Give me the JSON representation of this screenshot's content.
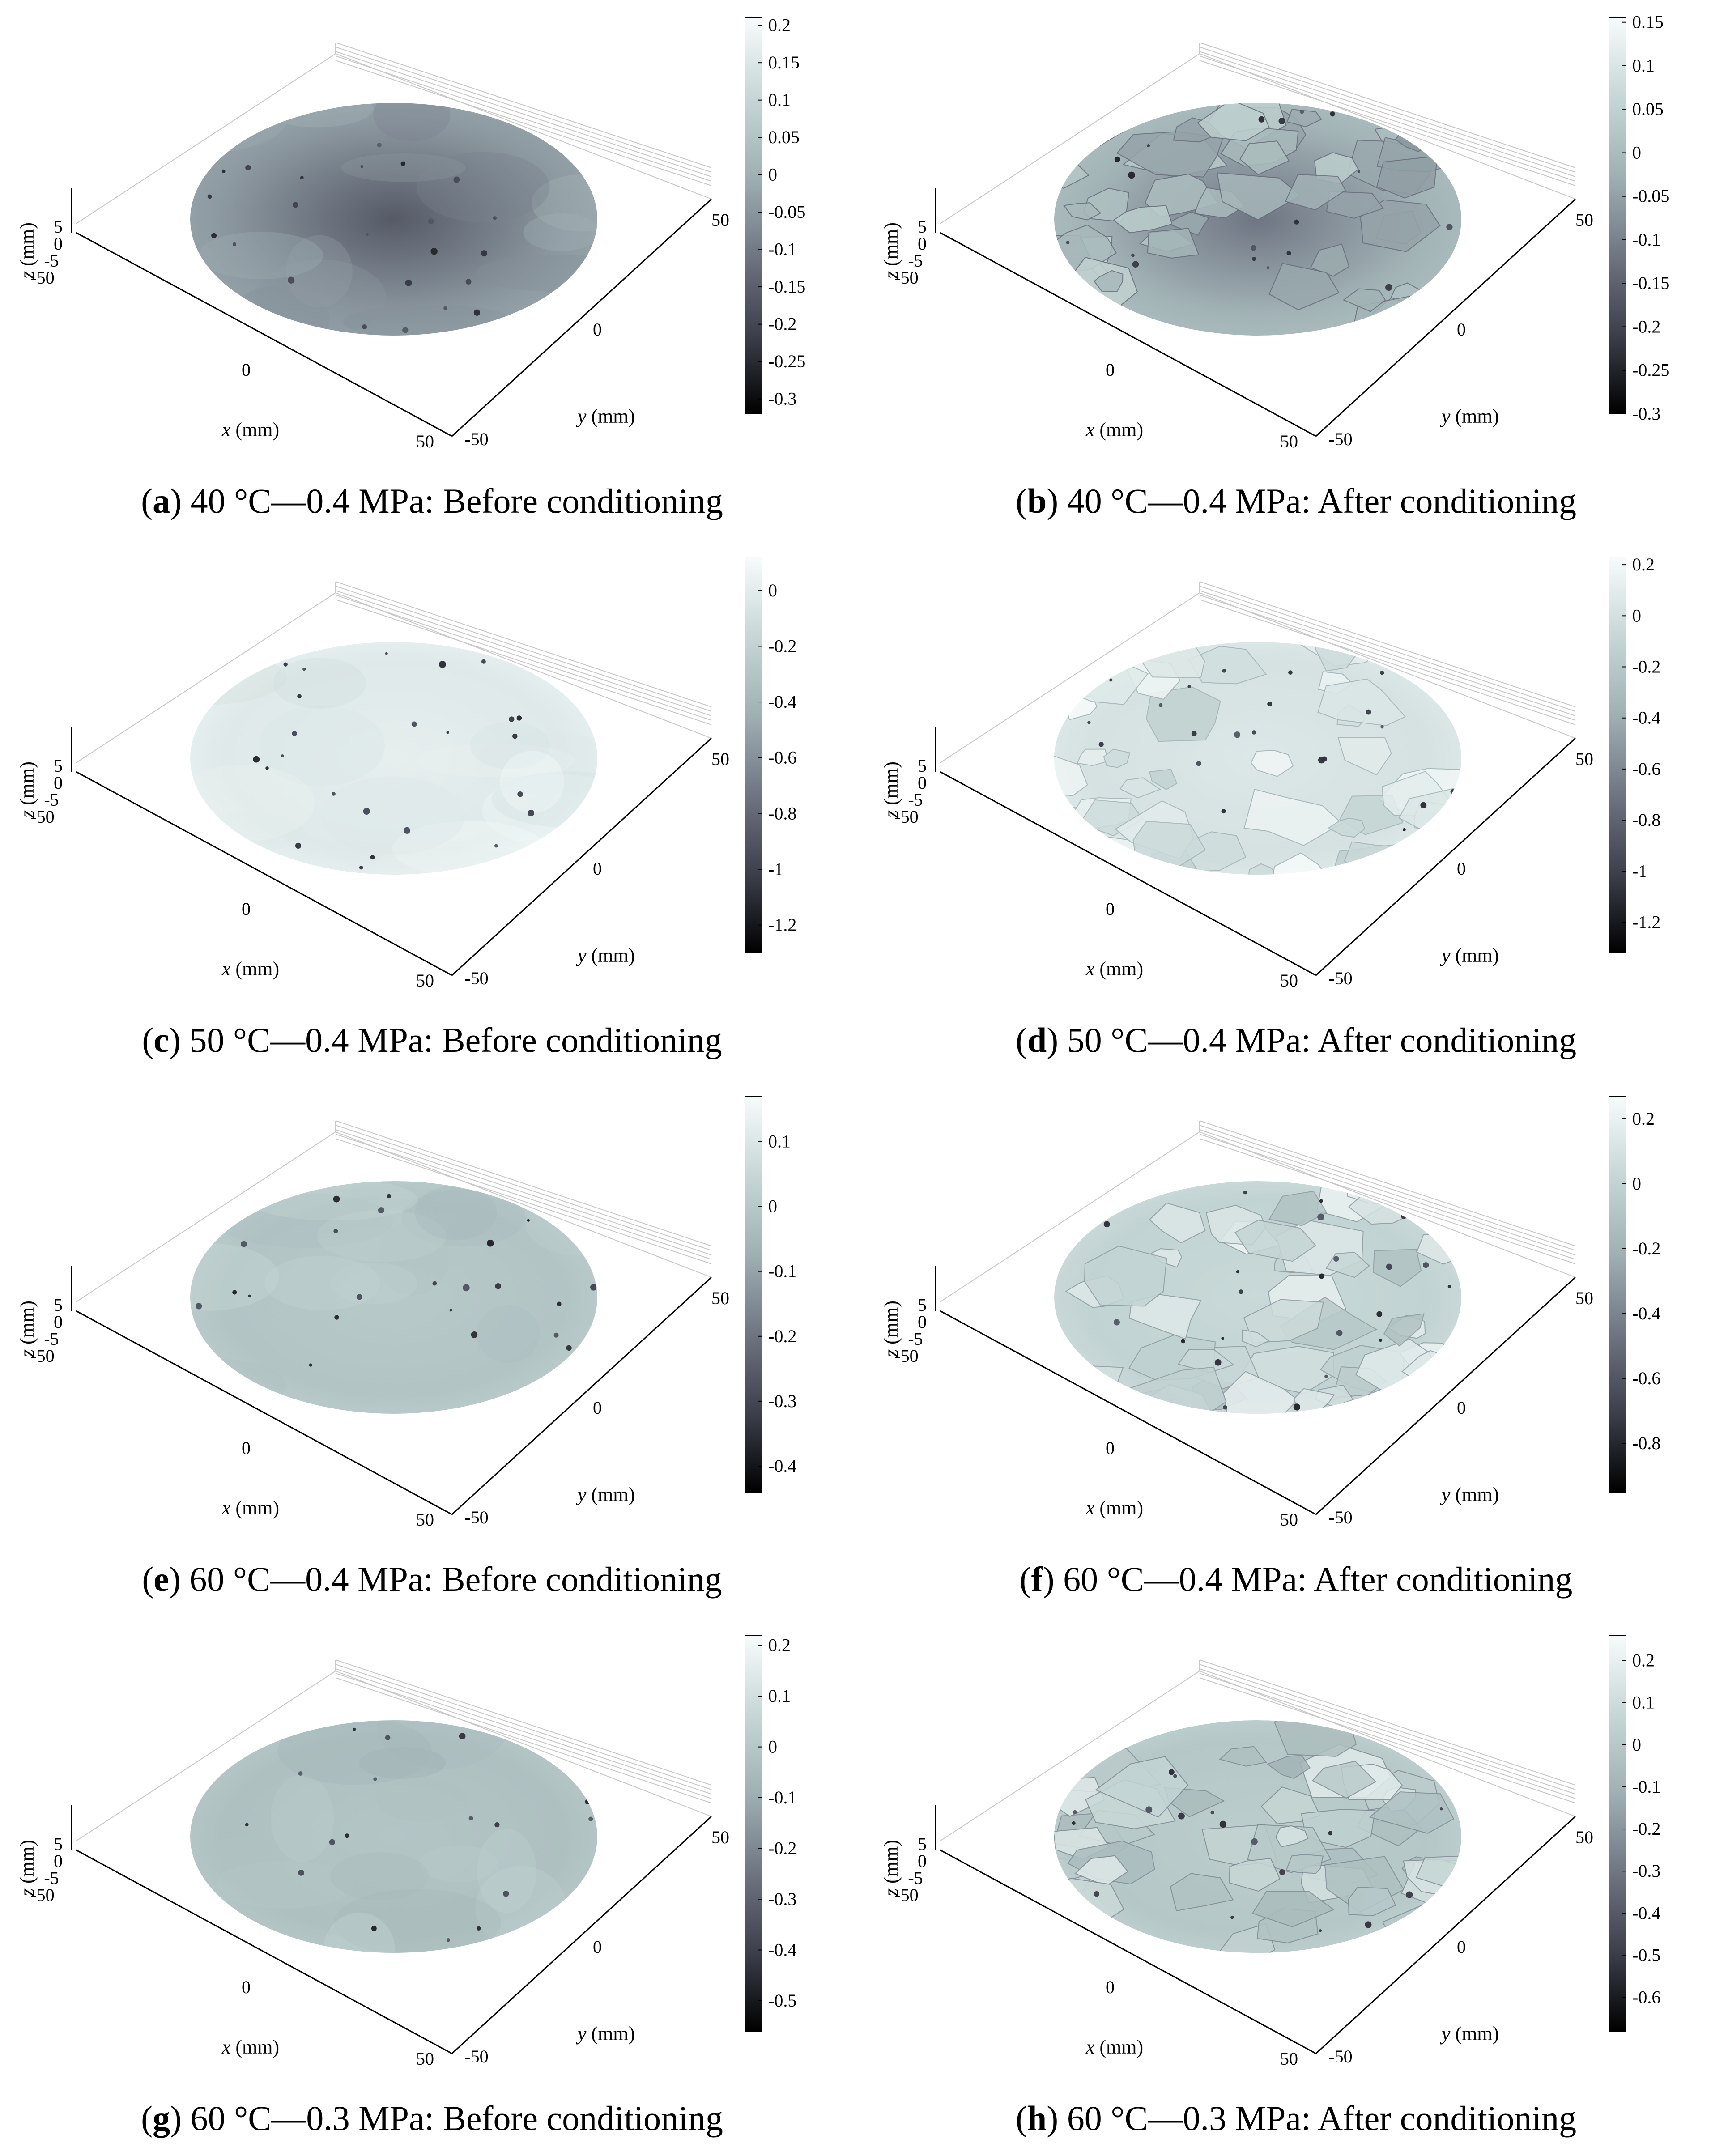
{
  "colormap": {
    "stops": [
      "#000000",
      "#3d3f4b",
      "#6f7583",
      "#9fb0b3",
      "#c6d7d6",
      "#f7fbfb"
    ]
  },
  "chart_data": [
    {
      "type": "heatmap",
      "panel": "a",
      "caption": {
        "letter": "a",
        "text": " 40 °C—0.4 MPa: Before conditioning"
      },
      "axes": {
        "x_label": "x",
        "y_label": "y",
        "z_label": "z",
        "unit": " (mm)",
        "x_ticks": [
          "0",
          "50"
        ],
        "y_ticks": [
          "-50",
          "0",
          "50"
        ],
        "z_ticks": [
          "5",
          "0",
          "-5",
          "-50"
        ]
      },
      "colorbar": {
        "min": -0.32,
        "max": 0.21,
        "ticks": [
          "0.2",
          "0.15",
          "0.1",
          "0.05",
          "0",
          "-0.05",
          "-0.1",
          "-0.15",
          "-0.2",
          "-0.25",
          "-0.3"
        ],
        "tick_values": [
          0.2,
          0.15,
          0.1,
          0.05,
          0,
          -0.05,
          -0.1,
          -0.15,
          -0.2,
          -0.25,
          -0.3
        ]
      },
      "surface_level": 0.52,
      "texture": "smooth",
      "dark_center": true
    },
    {
      "type": "heatmap",
      "panel": "b",
      "caption": {
        "letter": "b",
        "text": " 40 °C—0.4 MPa: After conditioning"
      },
      "axes": {
        "x_label": "x",
        "y_label": "y",
        "z_label": "z",
        "unit": " (mm)",
        "x_ticks": [
          "0",
          "50"
        ],
        "y_ticks": [
          "-50",
          "0",
          "50"
        ],
        "z_ticks": [
          "5",
          "0",
          "-5",
          "-50"
        ]
      },
      "colorbar": {
        "min": -0.3,
        "max": 0.155,
        "ticks": [
          "0.15",
          "0.1",
          "0.05",
          "0",
          "-0.05",
          "-0.1",
          "-0.15",
          "-0.2",
          "-0.25",
          "-0.3"
        ],
        "tick_values": [
          0.15,
          0.1,
          0.05,
          0,
          -0.05,
          -0.1,
          -0.15,
          -0.2,
          -0.25,
          -0.3
        ]
      },
      "surface_level": 0.62,
      "texture": "aggregate",
      "dark_center": true
    },
    {
      "type": "heatmap",
      "panel": "c",
      "caption": {
        "letter": "c",
        "text": " 50 °C—0.4 MPa: Before conditioning"
      },
      "axes": {
        "x_label": "x",
        "y_label": "y",
        "z_label": "z",
        "unit": " (mm)",
        "x_ticks": [
          "0",
          "50"
        ],
        "y_ticks": [
          "-50",
          "0",
          "50"
        ],
        "z_ticks": [
          "5",
          "0",
          "-5",
          "-50"
        ]
      },
      "colorbar": {
        "min": -1.3,
        "max": 0.12,
        "ticks": [
          "0",
          "-0.2",
          "-0.4",
          "-0.6",
          "-0.8",
          "-1",
          "-1.2"
        ],
        "tick_values": [
          0,
          -0.2,
          -0.4,
          -0.6,
          -0.8,
          -1,
          -1.2
        ]
      },
      "surface_level": 0.9,
      "texture": "smooth",
      "dark_center": false
    },
    {
      "type": "heatmap",
      "panel": "d",
      "caption": {
        "letter": "d",
        "text": " 50 °C—0.4 MPa: After conditioning"
      },
      "axes": {
        "x_label": "x",
        "y_label": "y",
        "z_label": "z",
        "unit": " (mm)",
        "x_ticks": [
          "0",
          "50"
        ],
        "y_ticks": [
          "-50",
          "0",
          "50"
        ],
        "z_ticks": [
          "5",
          "0",
          "-5",
          "-50"
        ]
      },
      "colorbar": {
        "min": -1.32,
        "max": 0.23,
        "ticks": [
          "0.2",
          "0",
          "-0.2",
          "-0.4",
          "-0.6",
          "-0.8",
          "-1",
          "-1.2"
        ],
        "tick_values": [
          0.2,
          0,
          -0.2,
          -0.4,
          -0.6,
          -0.8,
          -1,
          -1.2
        ]
      },
      "surface_level": 0.86,
      "texture": "aggregate",
      "dark_center": false
    },
    {
      "type": "heatmap",
      "panel": "e",
      "caption": {
        "letter": "e",
        "text": " 60 °C—0.4 MPa: Before conditioning"
      },
      "axes": {
        "x_label": "x",
        "y_label": "y",
        "z_label": "z",
        "unit": " (mm)",
        "x_ticks": [
          "0",
          "50"
        ],
        "y_ticks": [
          "-50",
          "0",
          "50"
        ],
        "z_ticks": [
          "5",
          "0",
          "-5",
          "-50"
        ]
      },
      "colorbar": {
        "min": -0.44,
        "max": 0.17,
        "ticks": [
          "0.1",
          "0",
          "-0.1",
          "-0.2",
          "-0.3",
          "-0.4"
        ],
        "tick_values": [
          0.1,
          0,
          -0.1,
          -0.2,
          -0.3,
          -0.4
        ]
      },
      "surface_level": 0.7,
      "texture": "smooth",
      "dark_center": false
    },
    {
      "type": "heatmap",
      "panel": "f",
      "caption": {
        "letter": "f",
        "text": " 60 °C—0.4 MPa: After conditioning"
      },
      "axes": {
        "x_label": "x",
        "y_label": "y",
        "z_label": "z",
        "unit": " (mm)",
        "x_ticks": [
          "0",
          "50"
        ],
        "y_ticks": [
          "-50",
          "0",
          "50"
        ],
        "z_ticks": [
          "5",
          "0",
          "-5",
          "-50"
        ]
      },
      "colorbar": {
        "min": -0.95,
        "max": 0.27,
        "ticks": [
          "0.2",
          "0",
          "-0.2",
          "-0.4",
          "-0.6",
          "-0.8"
        ],
        "tick_values": [
          0.2,
          0,
          -0.2,
          -0.4,
          -0.6,
          -0.8
        ]
      },
      "surface_level": 0.78,
      "texture": "aggregate",
      "dark_center": false
    },
    {
      "type": "heatmap",
      "panel": "g",
      "caption": {
        "letter": "g",
        "text": " 60 °C—0.3 MPa: Before conditioning"
      },
      "axes": {
        "x_label": "x",
        "y_label": "y",
        "z_label": "z",
        "unit": " (mm)",
        "x_ticks": [
          "0",
          "50"
        ],
        "y_ticks": [
          "-50",
          "0",
          "50"
        ],
        "z_ticks": [
          "5",
          "0",
          "-5",
          "-50"
        ]
      },
      "colorbar": {
        "min": -0.56,
        "max": 0.22,
        "ticks": [
          "0.2",
          "0.1",
          "0",
          "-0.1",
          "-0.2",
          "-0.3",
          "-0.4",
          "-0.5"
        ],
        "tick_values": [
          0.2,
          0.1,
          0,
          -0.1,
          -0.2,
          -0.3,
          -0.4,
          -0.5
        ]
      },
      "surface_level": 0.68,
      "texture": "smooth",
      "dark_center": false
    },
    {
      "type": "heatmap",
      "panel": "h",
      "caption": {
        "letter": "h",
        "text": " 60 °C—0.3 MPa: After conditioning"
      },
      "axes": {
        "x_label": "x",
        "y_label": "y",
        "z_label": "z",
        "unit": " (mm)",
        "x_ticks": [
          "0",
          "50"
        ],
        "y_ticks": [
          "-50",
          "0",
          "50"
        ],
        "z_ticks": [
          "5",
          "0",
          "-5",
          "-50"
        ]
      },
      "colorbar": {
        "min": -0.68,
        "max": 0.26,
        "ticks": [
          "0.2",
          "0.1",
          "0",
          "-0.1",
          "-0.2",
          "-0.3",
          "-0.4",
          "-0.5",
          "-0.6"
        ],
        "tick_values": [
          0.2,
          0.1,
          0,
          -0.1,
          -0.2,
          -0.3,
          -0.4,
          -0.5,
          -0.6
        ]
      },
      "surface_level": 0.72,
      "texture": "aggregate",
      "dark_center": false
    }
  ]
}
